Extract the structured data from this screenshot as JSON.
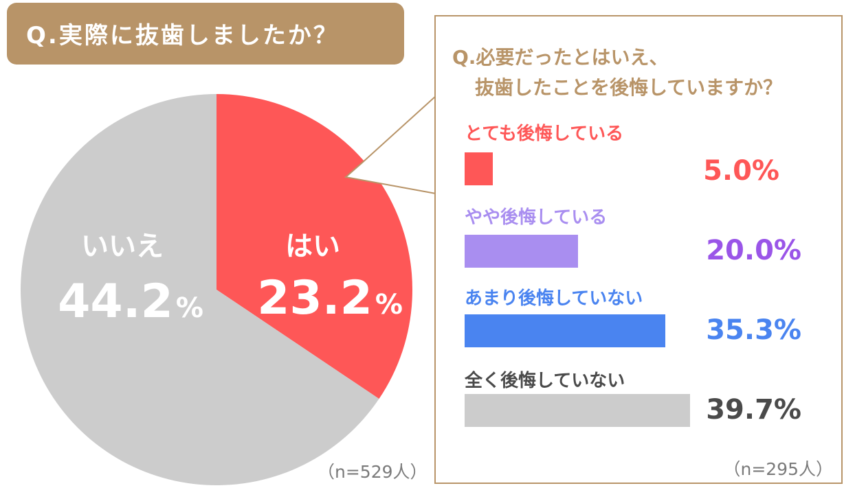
{
  "title": "Q.実際に抜歯しましたか？",
  "colors": {
    "banner": "#b89468",
    "yes": "#fe5757",
    "no": "#cccccc"
  },
  "pie": {
    "n_note": "（n=529人）",
    "slices": [
      {
        "label": "はい",
        "value_text": "23.2",
        "pct_sign": "%",
        "color": "#fe5757"
      },
      {
        "label": "いいえ",
        "value_text": "44.2",
        "pct_sign": "%",
        "color": "#cccccc"
      }
    ]
  },
  "followup": {
    "title_line1": "Q.必要だったとはいえ、",
    "title_line2": "抜歯したことを後悔していますか？",
    "n_note": "（n=295人）",
    "items": [
      {
        "label": "とても後悔している",
        "value": 5.0,
        "value_text": "5.0%",
        "color": "#fe5757"
      },
      {
        "label": "やや後悔している",
        "value": 20.0,
        "value_text": "20.0%",
        "color": "#a98ef0"
      },
      {
        "label": "あまり後悔していない",
        "value": 35.3,
        "value_text": "35.3%",
        "color": "#4a84f0"
      },
      {
        "label": "全く後悔していない",
        "value": 39.7,
        "value_text": "39.7%",
        "color": "#cccccc"
      }
    ]
  },
  "chart_data": [
    {
      "type": "pie",
      "title": "Q.実際に抜歯しましたか？",
      "categories": [
        "はい",
        "いいえ"
      ],
      "values": [
        23.2,
        44.2
      ],
      "note": "（n=529人）"
    },
    {
      "type": "bar",
      "title": "Q.必要だったとはいえ、抜歯したことを後悔していますか？",
      "categories": [
        "とても後悔している",
        "やや後悔している",
        "あまり後悔していない",
        "全く後悔していない"
      ],
      "values": [
        5.0,
        20.0,
        35.3,
        39.7
      ],
      "note": "（n=295人）"
    }
  ]
}
